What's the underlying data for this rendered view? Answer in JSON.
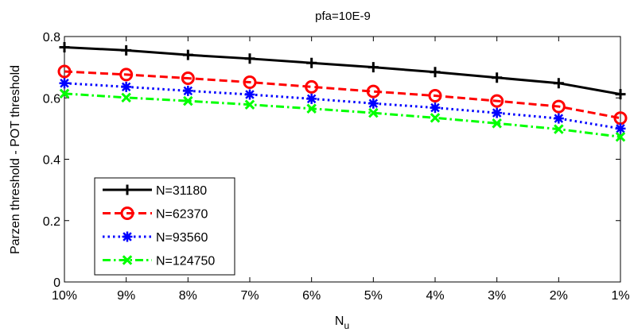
{
  "chart_data": {
    "type": "line",
    "title": "pfa=10E-9",
    "xlabel": "N",
    "xlabel_subscript": "u",
    "ylabel": "Parzen threshold - POT threshold",
    "categories": [
      "10%",
      "9%",
      "8%",
      "7%",
      "6%",
      "5%",
      "4%",
      "3%",
      "2%",
      "1%"
    ],
    "yticks": [
      "0",
      "0.2",
      "0.4",
      "0.6",
      "0.8"
    ],
    "ylim": [
      0,
      0.8
    ],
    "grid": false,
    "legend_position": "bottom-left",
    "series": [
      {
        "name": "N=31180",
        "color": "#000000",
        "marker": "plus",
        "dash": "solid",
        "values": [
          0.765,
          0.755,
          0.74,
          0.728,
          0.714,
          0.7,
          0.684,
          0.666,
          0.648,
          0.612
        ]
      },
      {
        "name": "N=62370",
        "color": "#ff0000",
        "marker": "circle",
        "dash": "dashed",
        "values": [
          0.686,
          0.676,
          0.664,
          0.651,
          0.636,
          0.621,
          0.607,
          0.59,
          0.572,
          0.534
        ]
      },
      {
        "name": "N=93560",
        "color": "#0000ff",
        "marker": "star",
        "dash": "dotted",
        "values": [
          0.648,
          0.636,
          0.623,
          0.611,
          0.597,
          0.582,
          0.568,
          0.551,
          0.533,
          0.5
        ]
      },
      {
        "name": "N=124750",
        "color": "#00ff00",
        "marker": "x",
        "dash": "dashdot",
        "values": [
          0.614,
          0.601,
          0.59,
          0.578,
          0.565,
          0.551,
          0.535,
          0.517,
          0.498,
          0.473
        ]
      }
    ]
  }
}
